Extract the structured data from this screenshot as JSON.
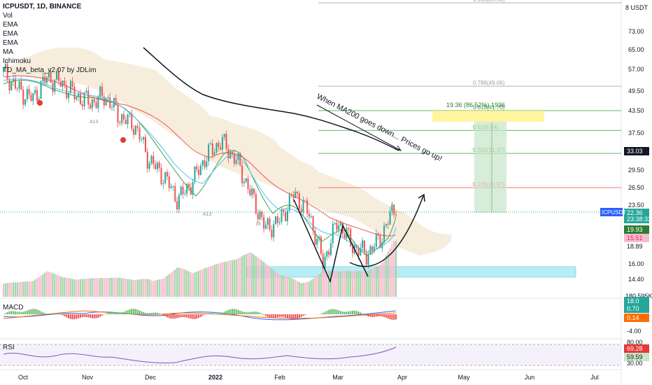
{
  "header": {
    "symbol": "ICPUSDT, 1D, BINANCE",
    "indicators": [
      "Vol",
      "EMA",
      "EMA",
      "EMA",
      "MA",
      "Ichimoku",
      "TD_MA_beta_v2.07 by JDLim"
    ],
    "currency": "8 USDT"
  },
  "price_axis": {
    "ticks": [
      "73.00",
      "65.00",
      "57.00",
      "49.50",
      "43.50",
      "37.50",
      "33.03",
      "29.50",
      "26.50",
      "23.50",
      "22.36",
      "19.93",
      "15.51",
      "18.89",
      "16.00",
      "14.40",
      "180.595K"
    ],
    "countdown": "23:38:33"
  },
  "time_axis": [
    "Oct",
    "Nov",
    "Dec",
    "2022",
    "Feb",
    "Mar",
    "Apr",
    "May",
    "Jun",
    "Jul"
  ],
  "fib_levels": [
    {
      "label": "1.618(85.50)",
      "value": 85.5
    },
    {
      "label": "0.786(49.06)",
      "value": 49.06
    },
    {
      "label": "0.618(41.70)",
      "value": 41.7
    },
    {
      "label": "0.5(36.54)",
      "value": 36.54
    },
    {
      "label": "0.382(31.37)",
      "value": 31.37
    },
    {
      "label": "0.236(24.97)",
      "value": 24.97
    }
  ],
  "target_box": {
    "label": "19.36 (86.52%) 1936"
  },
  "annotation": {
    "text": "When MA200 goes down... Prices go up!"
  },
  "td_labels": [
    "9",
    "A13",
    "A13",
    "13",
    "8",
    "8",
    "9"
  ],
  "badges": {
    "last_price": {
      "text": "22.36",
      "color": "#26a69a"
    },
    "symbol_tag": {
      "text": "ICPUSDT",
      "color": "#2962ff"
    },
    "ema1": {
      "text": "19.93",
      "color": "#2e7d32"
    },
    "ema2": {
      "text": "15.51",
      "color": "#e91e63"
    },
    "ma": {
      "text": "18.89",
      "color": "#131722"
    },
    "marker": {
      "text": "33.03",
      "color": "#131722"
    }
  },
  "macd": {
    "label": "MACD",
    "ticks": [
      "0.70",
      "0.14",
      "-4.00"
    ],
    "badge_top": "18.0"
  },
  "rsi": {
    "label": "RSI",
    "ticks": [
      "69.28",
      "59.59",
      "30.00"
    ],
    "top_tick": "80.00"
  },
  "chart_data": {
    "type": "candlestick",
    "x": [
      "2021-09-20",
      "2021-09-27",
      "2021-10-04",
      "2021-10-11",
      "2021-10-18",
      "2021-10-25",
      "2021-11-01",
      "2021-11-08",
      "2021-11-15",
      "2021-11-22",
      "2021-11-29",
      "2021-12-06",
      "2021-12-13",
      "2021-12-20",
      "2021-12-27",
      "2022-01-03",
      "2022-01-10",
      "2022-01-17",
      "2022-01-24",
      "2022-01-31",
      "2022-02-07",
      "2022-02-14",
      "2022-02-21",
      "2022-02-28",
      "2022-03-07",
      "2022-03-14",
      "2022-03-21",
      "2022-03-28"
    ],
    "close": [
      54,
      48,
      45,
      52,
      50,
      46,
      44,
      46,
      40,
      38,
      30,
      27,
      23,
      26,
      31,
      34,
      30,
      24,
      19,
      20,
      24,
      21,
      15,
      20,
      17,
      16,
      18,
      22.36
    ],
    "volume": [
      90,
      70,
      60,
      85,
      60,
      50,
      55,
      60,
      70,
      75,
      110,
      95,
      120,
      80,
      90,
      100,
      110,
      140,
      120,
      95,
      100,
      85,
      110,
      90,
      80,
      75,
      95,
      180.6
    ],
    "ma200": [
      null,
      null,
      null,
      null,
      null,
      null,
      null,
      null,
      null,
      null,
      null,
      null,
      null,
      null,
      null,
      null,
      null,
      48,
      47,
      46,
      45,
      44,
      43,
      42,
      41,
      40,
      39.5,
      39
    ]
  }
}
